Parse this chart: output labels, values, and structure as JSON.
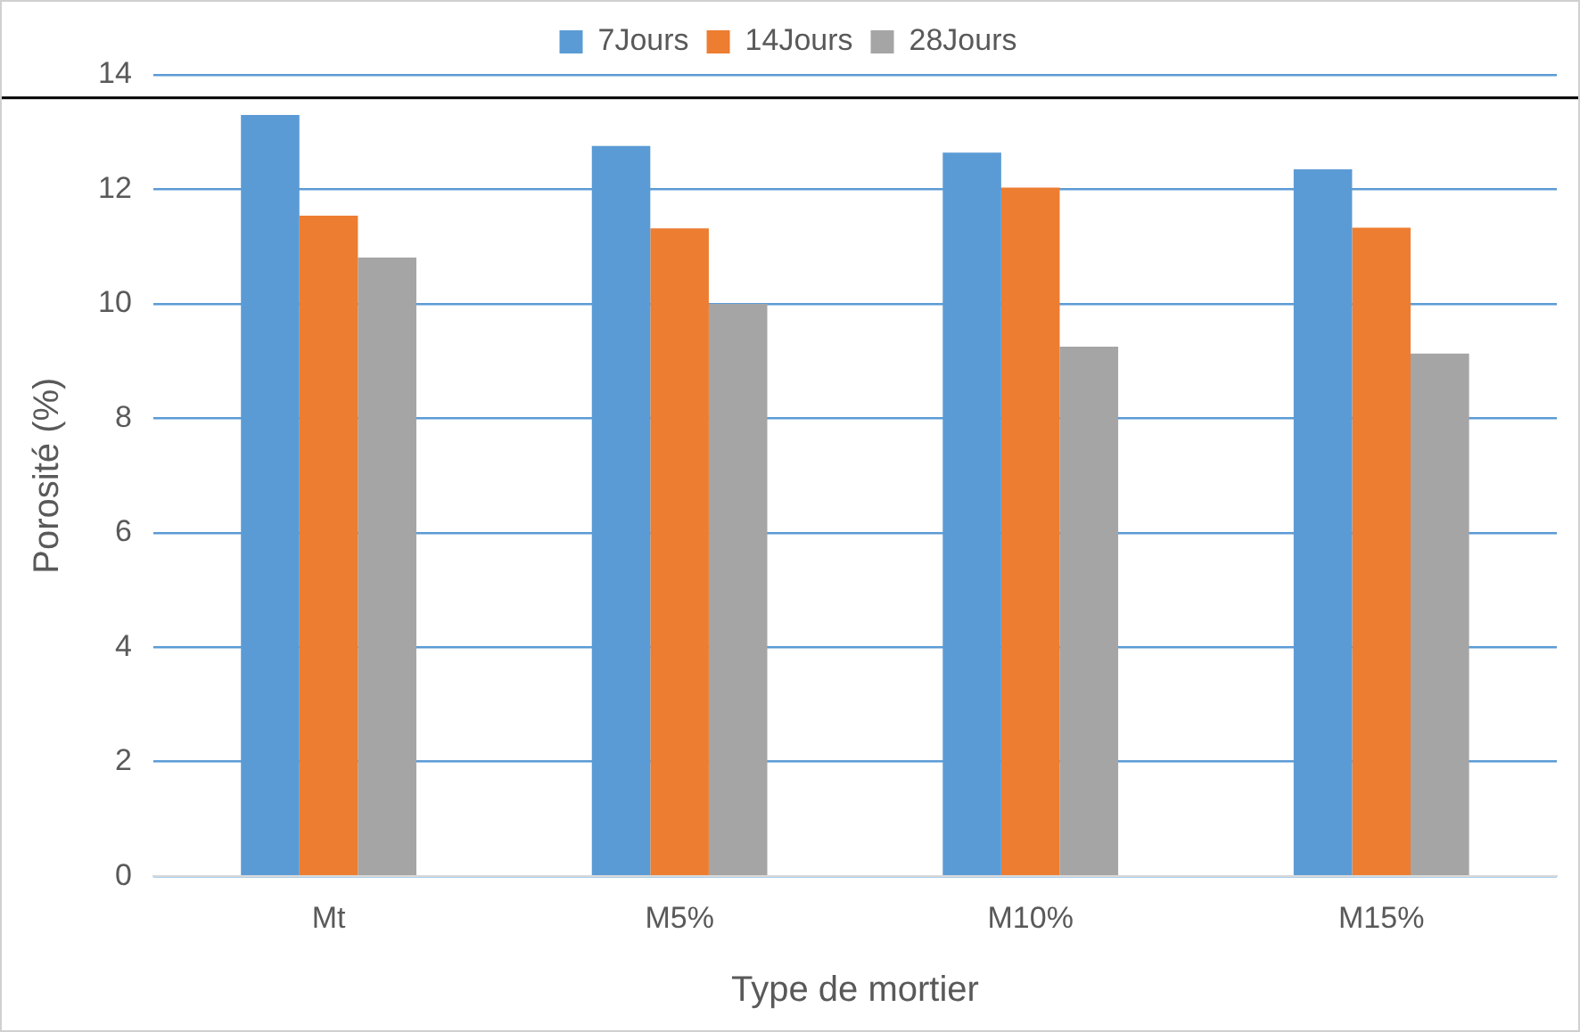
{
  "chart_data": {
    "type": "bar",
    "xlabel": "Type de mortier",
    "ylabel": "Porosité (%)",
    "categories": [
      "Mt",
      "M5%",
      "M10%",
      "M15%"
    ],
    "series": [
      {
        "name": "7Jours",
        "color": "#5b9bd5",
        "values": [
          13.3,
          12.76,
          12.64,
          12.35
        ]
      },
      {
        "name": "14Jours",
        "color": "#ed7d31",
        "values": [
          11.54,
          11.32,
          12.03,
          11.33
        ]
      },
      {
        "name": "28Jours",
        "color": "#a5a5a5",
        "values": [
          10.81,
          10.0,
          9.25,
          9.13
        ]
      }
    ],
    "ylim": [
      0,
      14
    ],
    "yticks": [
      0,
      2,
      4,
      6,
      8,
      10,
      12,
      14
    ],
    "grid": "y",
    "legend": "top",
    "ref_lines": [
      {
        "axis": "y",
        "value": 13.6,
        "color": "#000000"
      }
    ]
  }
}
